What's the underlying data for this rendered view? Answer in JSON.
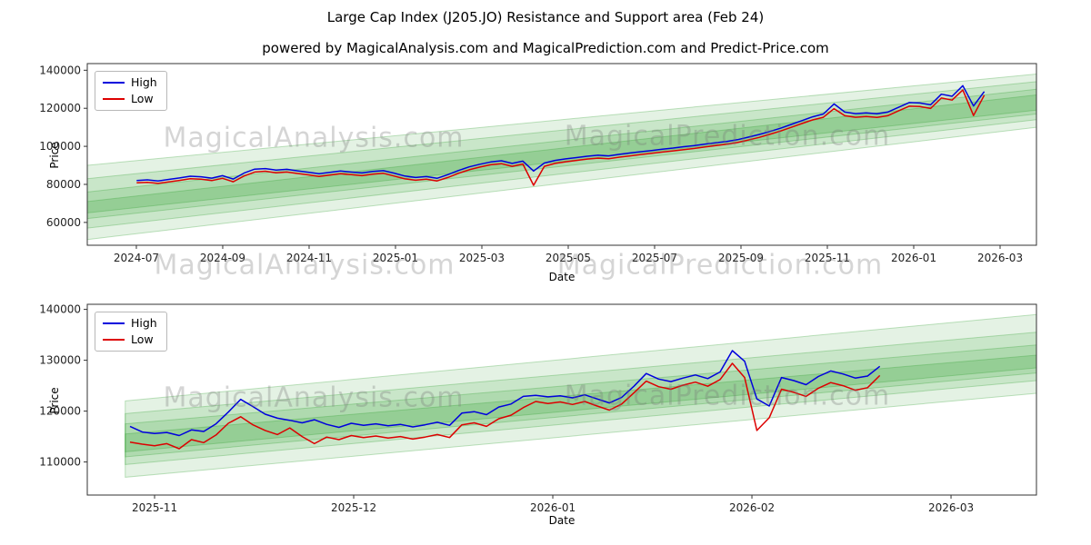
{
  "figure": {
    "title": "Large Cap Index (J205.JO) Resistance and Support area (Feb 24)",
    "subtitle": "powered by MagicalAnalysis.com and MagicalPrediction.com and Predict-Price.com"
  },
  "watermarks": [
    "MagicalAnalysis.com",
    "MagicalPrediction.com"
  ],
  "colors": {
    "high_line": "#0000dd",
    "low_line": "#dd0000",
    "band_green": "#2e9e2e",
    "axis": "#333333",
    "tick_text": "#222222"
  },
  "chart_data": [
    {
      "type": "line",
      "title": "",
      "xlabel": "Date",
      "ylabel": "Price",
      "legend_position": "upper left",
      "grid": false,
      "x_tick_labels": [
        "2024-07",
        "2024-09",
        "2024-11",
        "2025-01",
        "2025-03",
        "2025-05",
        "2025-07",
        "2025-09",
        "2025-11",
        "2026-01",
        "2026-03"
      ],
      "y_ticks": [
        60000,
        80000,
        100000,
        120000,
        140000
      ],
      "ylim": [
        48000,
        143500
      ],
      "band_color": "#2e9e2e",
      "band_span": [
        0,
        1
      ],
      "bands": [
        {
          "left": [
            51000,
            90000
          ],
          "right": [
            110000,
            138000
          ],
          "opacity": 0.13
        },
        {
          "left": [
            57000,
            83000
          ],
          "right": [
            114000,
            134000
          ],
          "opacity": 0.15
        },
        {
          "left": [
            62000,
            76000
          ],
          "right": [
            117000,
            130000
          ],
          "opacity": 0.17
        },
        {
          "left": [
            65000,
            71000
          ],
          "right": [
            119000,
            127000
          ],
          "opacity": 0.2
        }
      ],
      "series": [
        {
          "name": "High",
          "color": "#0000dd",
          "t_start": 0.052,
          "t_end": 0.945,
          "values": [
            82000,
            82400,
            81800,
            82600,
            83400,
            84300,
            84000,
            83300,
            84600,
            82800,
            85900,
            88000,
            88300,
            87500,
            87900,
            87100,
            86400,
            85600,
            86300,
            87000,
            86500,
            86000,
            86800,
            87200,
            85900,
            84400,
            83600,
            84100,
            83200,
            85100,
            87300,
            89200,
            90600,
            91800,
            92400,
            91000,
            92200,
            87000,
            91200,
            92600,
            93400,
            94100,
            94800,
            95300,
            95000,
            95800,
            96500,
            97200,
            97800,
            98500,
            99100,
            99800,
            100400,
            101200,
            101900,
            102600,
            103500,
            104800,
            106200,
            107800,
            109500,
            111500,
            113500,
            115500,
            117000,
            122300,
            118000,
            117200,
            117600,
            117100,
            118000,
            120500,
            123000,
            122800,
            121800,
            127400,
            126300,
            131900,
            121200,
            128800
          ]
        },
        {
          "name": "Low",
          "color": "#dd0000",
          "t_start": 0.052,
          "t_end": 0.945,
          "values": [
            80800,
            81100,
            80500,
            81300,
            82100,
            83000,
            82700,
            82000,
            83200,
            81400,
            84400,
            86500,
            86900,
            86100,
            86500,
            85700,
            85000,
            84200,
            84900,
            85600,
            85100,
            84600,
            85400,
            85800,
            84400,
            82900,
            82200,
            82700,
            81800,
            83600,
            85800,
            87700,
            89100,
            90300,
            90900,
            89500,
            90700,
            79500,
            89500,
            91000,
            91900,
            92600,
            93300,
            93800,
            93500,
            94300,
            95000,
            95700,
            96300,
            97000,
            97600,
            98300,
            98900,
            99700,
            100400,
            101100,
            102000,
            103300,
            104700,
            106300,
            108000,
            110000,
            112000,
            113900,
            115300,
            119800,
            116100,
            115300,
            115700,
            115200,
            116100,
            118600,
            121100,
            120900,
            119900,
            125400,
            124300,
            129600,
            116200,
            126900
          ]
        }
      ]
    },
    {
      "type": "line",
      "title": "",
      "xlabel": "Date",
      "ylabel": "Price",
      "legend_position": "upper left",
      "grid": false,
      "x_tick_labels": [
        "2025-11",
        "2025-12",
        "2026-01",
        "2026-02",
        "2026-03"
      ],
      "y_ticks": [
        110000,
        120000,
        130000,
        140000
      ],
      "ylim": [
        103500,
        141000
      ],
      "band_color": "#2e9e2e",
      "band_span": [
        0.04,
        1
      ],
      "bands": [
        {
          "left": [
            107000,
            122000
          ],
          "right": [
            123500,
            139000
          ],
          "opacity": 0.13
        },
        {
          "left": [
            109500,
            119500
          ],
          "right": [
            126000,
            135500
          ],
          "opacity": 0.15
        },
        {
          "left": [
            111000,
            117500
          ],
          "right": [
            127500,
            133000
          ],
          "opacity": 0.17
        },
        {
          "left": [
            112000,
            115500
          ],
          "right": [
            128500,
            131000
          ],
          "opacity": 0.2
        }
      ],
      "series": [
        {
          "name": "High",
          "color": "#0000dd",
          "t_start": 0.045,
          "t_end": 0.835,
          "values": [
            117000,
            115900,
            115600,
            115800,
            115200,
            116300,
            116000,
            117500,
            119800,
            122300,
            120900,
            119400,
            118600,
            118200,
            117700,
            118300,
            117400,
            116800,
            117600,
            117200,
            117500,
            117100,
            117400,
            116900,
            117300,
            117800,
            117200,
            119600,
            119900,
            119300,
            120800,
            121400,
            122900,
            123100,
            122800,
            123000,
            122600,
            123200,
            122400,
            121600,
            122700,
            124900,
            127400,
            126300,
            125800,
            126500,
            127100,
            126400,
            127700,
            131900,
            129800,
            122400,
            121000,
            126600,
            126000,
            125200,
            126800,
            127900,
            127300,
            126500,
            126900,
            128800
          ]
        },
        {
          "name": "Low",
          "color": "#dd0000",
          "t_start": 0.045,
          "t_end": 0.835,
          "values": [
            113900,
            113500,
            113200,
            113600,
            112600,
            114400,
            113800,
            115300,
            117600,
            118900,
            117300,
            116200,
            115400,
            116700,
            115000,
            113600,
            114900,
            114400,
            115200,
            114800,
            115100,
            114700,
            115000,
            114500,
            114900,
            115400,
            114800,
            117300,
            117700,
            117000,
            118500,
            119200,
            120700,
            121900,
            121500,
            121800,
            121300,
            121900,
            121000,
            120200,
            121400,
            123600,
            125900,
            124800,
            124300,
            125100,
            125700,
            124900,
            126200,
            129400,
            126600,
            116200,
            118700,
            124300,
            123700,
            122900,
            124500,
            125600,
            125000,
            124100,
            124600,
            127000
          ]
        }
      ]
    }
  ]
}
